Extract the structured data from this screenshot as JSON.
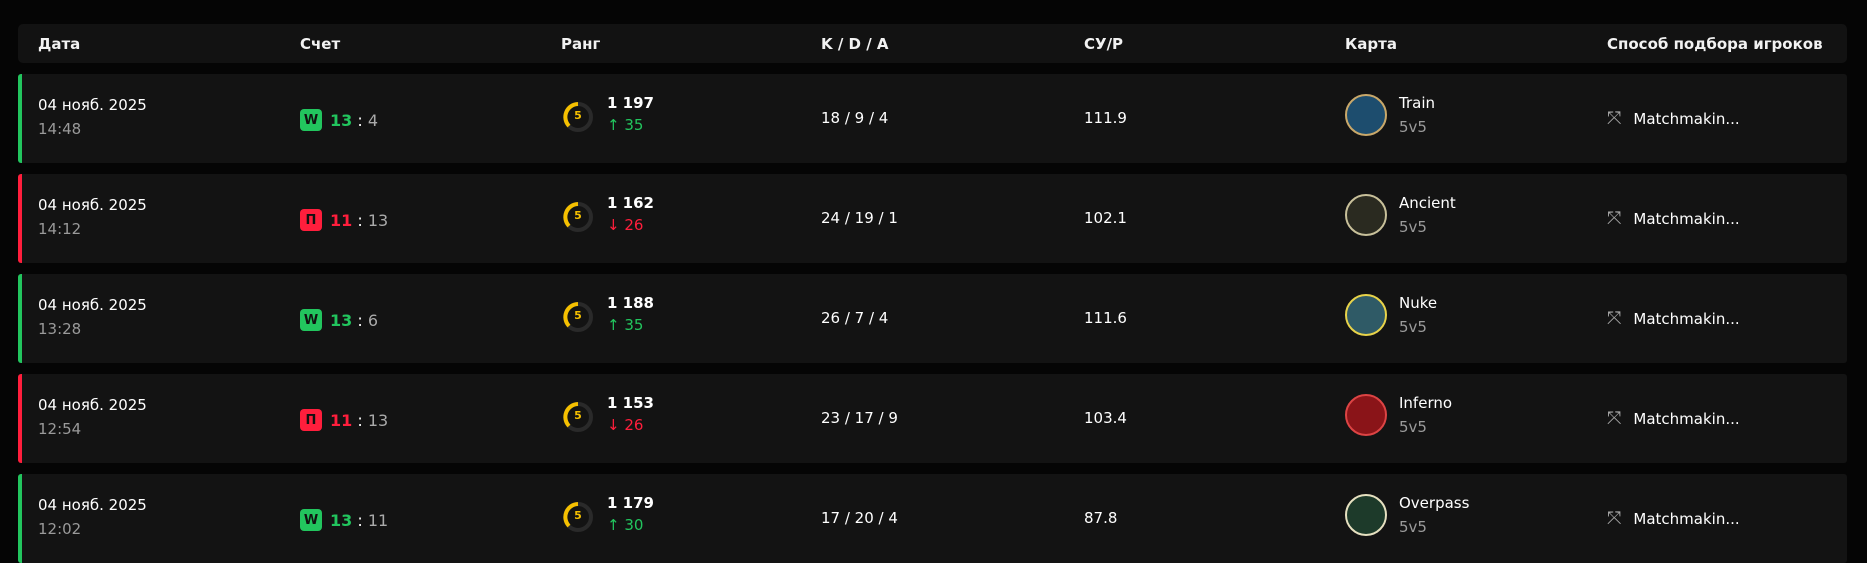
{
  "headers": {
    "date": "Дата",
    "score": "Счет",
    "rank": "Ранг",
    "kda": "K / D / A",
    "adr": "СУ/Р",
    "map": "Карта",
    "mode": "Способ подбора игроков"
  },
  "colors": {
    "win": "#22c55e",
    "loss": "#ff1e3c",
    "rank": "#f5c000"
  },
  "rows": [
    {
      "result": "win",
      "badge": "W",
      "date": "04 нояб. 2025",
      "time": "14:48",
      "own": "13",
      "sep": ":",
      "opp": "4",
      "level": "5",
      "elo": "1 197",
      "delta": "35",
      "kda": "18 / 9 / 4",
      "adr": "111.9",
      "map": "Train",
      "map_mode": "5v5",
      "mode": "Matchmakin..."
    },
    {
      "result": "loss",
      "badge": "П",
      "date": "04 нояб. 2025",
      "time": "14:12",
      "own": "11",
      "sep": ":",
      "opp": "13",
      "level": "5",
      "elo": "1 162",
      "delta": "26",
      "kda": "24 / 19 / 1",
      "adr": "102.1",
      "map": "Ancient",
      "map_mode": "5v5",
      "mode": "Matchmakin..."
    },
    {
      "result": "win",
      "badge": "W",
      "date": "04 нояб. 2025",
      "time": "13:28",
      "own": "13",
      "sep": ":",
      "opp": "6",
      "level": "5",
      "elo": "1 188",
      "delta": "35",
      "kda": "26 / 7 / 4",
      "adr": "111.6",
      "map": "Nuke",
      "map_mode": "5v5",
      "mode": "Matchmakin..."
    },
    {
      "result": "loss",
      "badge": "П",
      "date": "04 нояб. 2025",
      "time": "12:54",
      "own": "11",
      "sep": ":",
      "opp": "13",
      "level": "5",
      "elo": "1 153",
      "delta": "26",
      "kda": "23 / 17 / 9",
      "adr": "103.4",
      "map": "Inferno",
      "map_mode": "5v5",
      "mode": "Matchmakin..."
    },
    {
      "result": "win",
      "badge": "W",
      "date": "04 нояб. 2025",
      "time": "12:02",
      "own": "13",
      "sep": ":",
      "opp": "11",
      "level": "5",
      "elo": "1 179",
      "delta": "30",
      "kda": "17 / 20 / 4",
      "adr": "87.8",
      "map": "Overpass",
      "map_mode": "5v5",
      "mode": "Matchmakin..."
    }
  ]
}
